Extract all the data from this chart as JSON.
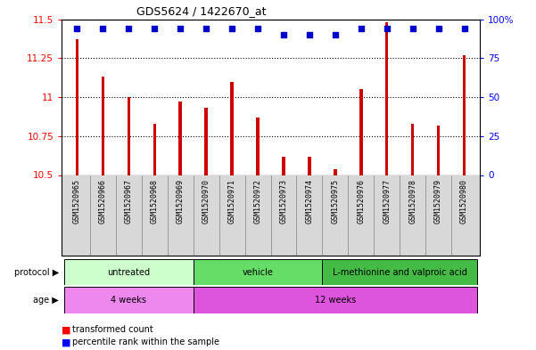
{
  "title": "GDS5624 / 1422670_at",
  "samples": [
    "GSM1520965",
    "GSM1520966",
    "GSM1520967",
    "GSM1520968",
    "GSM1520969",
    "GSM1520970",
    "GSM1520971",
    "GSM1520972",
    "GSM1520973",
    "GSM1520974",
    "GSM1520975",
    "GSM1520976",
    "GSM1520977",
    "GSM1520978",
    "GSM1520979",
    "GSM1520980"
  ],
  "bar_heights": [
    11.37,
    11.13,
    11.0,
    10.83,
    10.97,
    10.93,
    11.1,
    10.87,
    10.62,
    10.62,
    10.54,
    11.05,
    11.48,
    10.83,
    10.82,
    11.27
  ],
  "percentile_y": [
    11.44,
    11.44,
    11.44,
    11.44,
    11.44,
    11.44,
    11.44,
    11.44,
    11.4,
    11.4,
    11.4,
    11.44,
    11.44,
    11.44,
    11.44,
    11.44
  ],
  "ylim": [
    10.5,
    11.5
  ],
  "yticks_left": [
    10.5,
    10.75,
    11.0,
    11.25,
    11.5
  ],
  "ytick_labels_left": [
    "10.5",
    "10.75",
    "11",
    "11.25",
    "11.5"
  ],
  "yticks_right": [
    0,
    25,
    50,
    75,
    100
  ],
  "ytick_labels_right": [
    "0",
    "25",
    "50",
    "75",
    "100%"
  ],
  "bar_color": "#cc0000",
  "dot_color": "#0000cc",
  "bg_color": "#e8e8e8",
  "plot_bg": "#ffffff",
  "protocol_groups": [
    {
      "label": "untreated",
      "start": 0,
      "end": 4,
      "color": "#ccffcc"
    },
    {
      "label": "vehicle",
      "start": 5,
      "end": 9,
      "color": "#66dd66"
    },
    {
      "label": "L-methionine and valproic acid",
      "start": 10,
      "end": 15,
      "color": "#44bb44"
    }
  ],
  "age_groups": [
    {
      "label": "4 weeks",
      "start": 0,
      "end": 4,
      "color": "#ee88ee"
    },
    {
      "label": "12 weeks",
      "start": 5,
      "end": 15,
      "color": "#dd55dd"
    }
  ],
  "bar_width": 0.12
}
